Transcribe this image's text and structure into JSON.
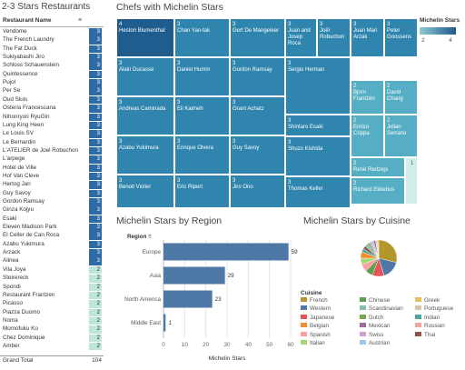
{
  "table": {
    "title": "2-3 Stars Restaurants",
    "header": "Restaurant Name",
    "rows": [
      {
        "name": "Vendome",
        "value": "3"
      },
      {
        "name": "The French Laundry",
        "value": "3"
      },
      {
        "name": "The Fat Duck",
        "value": "3"
      },
      {
        "name": "Sukiyabashi Jiro",
        "value": "3"
      },
      {
        "name": "Schloss Schauenstein",
        "value": "3"
      },
      {
        "name": "Quintessence",
        "value": "3"
      },
      {
        "name": "Pujol",
        "value": "3"
      },
      {
        "name": "Per Se",
        "value": "3"
      },
      {
        "name": "Oud Sluis",
        "value": "3"
      },
      {
        "name": "Osteria Francescana",
        "value": "3"
      },
      {
        "name": "Nihonryori RyuGin",
        "value": "3"
      },
      {
        "name": "Lung King Heen",
        "value": "3"
      },
      {
        "name": "Le Louis SV",
        "value": "3"
      },
      {
        "name": "Le Bernardin",
        "value": "3"
      },
      {
        "name": "L'ATELIER de Joel Robuchon",
        "value": "3"
      },
      {
        "name": "L'arpege",
        "value": "3"
      },
      {
        "name": "Hotel de Ville",
        "value": "3"
      },
      {
        "name": "Hof Van Cleve",
        "value": "3"
      },
      {
        "name": "Hertog Jan",
        "value": "3"
      },
      {
        "name": "Guy Savoy",
        "value": "3"
      },
      {
        "name": "Gordon Ramsay",
        "value": "3"
      },
      {
        "name": "Ginza Kojyu",
        "value": "3"
      },
      {
        "name": "Esaki",
        "value": "3"
      },
      {
        "name": "Eleven Madison Park",
        "value": "3"
      },
      {
        "name": "El Celler de Can Roca",
        "value": "3"
      },
      {
        "name": "Azabu Yukimura",
        "value": "3"
      },
      {
        "name": "Arzack",
        "value": "3"
      },
      {
        "name": "Alinea",
        "value": "3"
      },
      {
        "name": "Vila Joya",
        "value": "2"
      },
      {
        "name": "Steirereck",
        "value": "2"
      },
      {
        "name": "Spondi",
        "value": "2"
      },
      {
        "name": "Restaurant Frantzen",
        "value": "2"
      },
      {
        "name": "Picasso",
        "value": "2"
      },
      {
        "name": "Piazza Duomo",
        "value": "2"
      },
      {
        "name": "Noma",
        "value": "2"
      },
      {
        "name": "Momofuku Ko",
        "value": "2"
      },
      {
        "name": "Chez Dominique",
        "value": "2"
      },
      {
        "name": "Amber",
        "value": "2"
      }
    ],
    "total_label": "Grand Total",
    "total_value": "104"
  },
  "treemap": {
    "title": "Chefs with Michelin Stars",
    "legend_title": "Michelin Stars",
    "legend_min": "2",
    "legend_max": "4",
    "cells": [
      {
        "stars": "4",
        "chef": "Heston Blumenthal"
      },
      {
        "stars": "3",
        "chef": "Chan Yan-tak"
      },
      {
        "stars": "3",
        "chef": "Gert De Mangeleer"
      },
      {
        "stars": "3",
        "chef": "Juan and Josep Roca"
      },
      {
        "stars": "3",
        "chef": "Joël Robuchon"
      },
      {
        "stars": "3",
        "chef": "Juan Mari Arzak"
      },
      {
        "stars": "3",
        "chef": "Peter Goossens"
      },
      {
        "stars": "3",
        "chef": "Daniel Humm"
      },
      {
        "stars": "3",
        "chef": "Gordon Ramsay"
      },
      {
        "stars": "3",
        "chef": "Alain Ducasse"
      },
      {
        "stars": "3",
        "chef": "Sergio Herman"
      },
      {
        "stars": "2",
        "chef": "Bjorn Frantzén"
      },
      {
        "stars": "2",
        "chef": "David Chang"
      },
      {
        "stars": "3",
        "chef": "Andreas Caminada"
      },
      {
        "stars": "3",
        "chef": "Eli Kaimeh"
      },
      {
        "stars": "3",
        "chef": "Grant Achatz"
      },
      {
        "stars": "3",
        "chef": "Shintaro Esaki"
      },
      {
        "stars": "3",
        "chef": "Azabu Yukimura"
      },
      {
        "stars": "3",
        "chef": "Enrique Olvera"
      },
      {
        "stars": "3",
        "chef": "Guy Savoy"
      },
      {
        "stars": "2",
        "chef": "Enrico Crippa"
      },
      {
        "stars": "2",
        "chef": "Julian Serrano"
      },
      {
        "stars": "3",
        "chef": "Shuzo Kishida"
      },
      {
        "stars": "2",
        "chef": "René Redzepi"
      },
      {
        "stars": "1",
        "chef": ""
      },
      {
        "stars": "3",
        "chef": "Benoit Violier"
      },
      {
        "stars": "3",
        "chef": "Eric Ripert"
      },
      {
        "stars": "3",
        "chef": "Jiro Ono"
      },
      {
        "stars": "3",
        "chef": "Thomas Keller"
      },
      {
        "stars": "2",
        "chef": "Richard Ekkebus"
      }
    ]
  },
  "region_chart": {
    "title": "Michelin Stars by Region",
    "filter_label": "Region",
    "xlabel": "Michelin Stars",
    "bar_color": "#4e79a7"
  },
  "cuisine": {
    "title": "Michelin Stars by Cuisine",
    "legend_title": "Cuisine",
    "items": [
      {
        "name": "French",
        "color": "#b5962a"
      },
      {
        "name": "Chinese",
        "color": "#59a14f"
      },
      {
        "name": "Greek",
        "color": "#e6c05c"
      },
      {
        "name": "Western",
        "color": "#4e79a7"
      },
      {
        "name": "Scandinavian",
        "color": "#86bcb6"
      },
      {
        "name": "Portuguese",
        "color": "#d4c6a5"
      },
      {
        "name": "Japanese",
        "color": "#e15759"
      },
      {
        "name": "Dutch",
        "color": "#76a84c"
      },
      {
        "name": "Indian",
        "color": "#4aa6a0"
      },
      {
        "name": "Belgian",
        "color": "#f28e2b"
      },
      {
        "name": "Mexican",
        "color": "#9c6b98"
      },
      {
        "name": "Russian",
        "color": "#f1a7a4"
      },
      {
        "name": "Spanish",
        "color": "#ff9da7"
      },
      {
        "name": "Swiss",
        "color": "#c8a2c8"
      },
      {
        "name": "Thai",
        "color": "#8c564b"
      },
      {
        "name": "Italian",
        "color": "#a3d977"
      },
      {
        "name": "Austrian",
        "color": "#9ecae9"
      }
    ]
  },
  "chart_data": [
    {
      "type": "bar",
      "orientation": "horizontal",
      "title": "Michelin Stars by Region",
      "categories": [
        "Europe",
        "Asia",
        "North America",
        "Middle East"
      ],
      "values": [
        59,
        29,
        23,
        1
      ],
      "xlabel": "Michelin Stars",
      "ylabel": "Region",
      "xlim": [
        0,
        60
      ],
      "xticks": [
        0,
        10,
        20,
        30,
        40,
        50,
        60
      ],
      "grid": true
    },
    {
      "type": "pie",
      "title": "Michelin Stars by Cuisine",
      "categories": [
        "French",
        "Western",
        "Japanese",
        "Chinese",
        "Spanish",
        "Italian",
        "Belgian",
        "Indian",
        "Thai",
        "Scandinavian",
        "Dutch",
        "Swiss",
        "Austrian",
        "Mexican",
        "Portuguese",
        "Russian",
        "Greek"
      ],
      "values": [
        30,
        17,
        11,
        7,
        7,
        6,
        6,
        3,
        3,
        3,
        2,
        2,
        2,
        2,
        1,
        1,
        1
      ],
      "legend": "bottom"
    }
  ]
}
